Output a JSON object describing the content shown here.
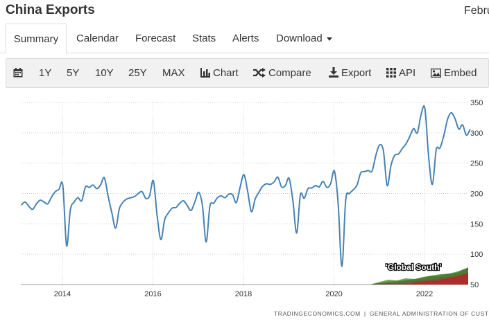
{
  "header": {
    "title": "China Exports",
    "date_partial": "Febru"
  },
  "tabs": [
    {
      "label": "Summary",
      "active": true
    },
    {
      "label": "Calendar"
    },
    {
      "label": "Forecast"
    },
    {
      "label": "Stats"
    },
    {
      "label": "Alerts"
    },
    {
      "label": "Download"
    }
  ],
  "toolbar": {
    "calendar_icon": "calendar-icon",
    "ranges": [
      "1Y",
      "5Y",
      "10Y",
      "25Y",
      "MAX"
    ],
    "chart_label": "Chart",
    "compare_label": "Compare",
    "export_label": "Export",
    "api_label": "API",
    "embed_label": "Embed"
  },
  "source": {
    "left": "TRADINGECONOMICS.COM",
    "right": "GENERAL ADMINISTRATION OF CUSTOMS"
  },
  "overlay": {
    "label": "'Global South'"
  },
  "colors": {
    "line": "#4682b4",
    "grid": "#d0d0d0",
    "toolbar_bg": "#f1f1f1"
  },
  "chart_data": {
    "type": "line",
    "title": "",
    "xlabel": "",
    "ylabel": "",
    "ylim": [
      50,
      350
    ],
    "yticks": [
      50,
      100,
      150,
      200,
      250,
      300,
      350
    ],
    "xticks": [
      "2014",
      "2016",
      "2018",
      "2020",
      "2022"
    ],
    "grid": true,
    "x_start": "2013-01",
    "x_end": "2022-12",
    "series": [
      {
        "name": "",
        "values": [
          181,
          186,
          179,
          174,
          183,
          189,
          186,
          183,
          194,
          203,
          207,
          213,
          114,
          173,
          186,
          193,
          188,
          211,
          210,
          214,
          208,
          214,
          226,
          196,
          168,
          143,
          175,
          186,
          191,
          193,
          195,
          200,
          203,
          192,
          196,
          221,
          164,
          124,
          157,
          168,
          176,
          177,
          184,
          188,
          180,
          172,
          186,
          202,
          181,
          120,
          179,
          184,
          193,
          196,
          193,
          199,
          198,
          185,
          210,
          231,
          204,
          170,
          191,
          202,
          212,
          216,
          215,
          219,
          227,
          211,
          213,
          225,
          188,
          135,
          198,
          192,
          208,
          209,
          213,
          211,
          220,
          210,
          216,
          237,
          184,
          80,
          189,
          200,
          206,
          214,
          234,
          236,
          238,
          237,
          263,
          280,
          270,
          213,
          246,
          263,
          265,
          274,
          282,
          294,
          307,
          300,
          330,
          340,
          260,
          215,
          272,
          275,
          295,
          322,
          333,
          323,
          306,
          313,
          296,
          306
        ]
      }
    ]
  }
}
